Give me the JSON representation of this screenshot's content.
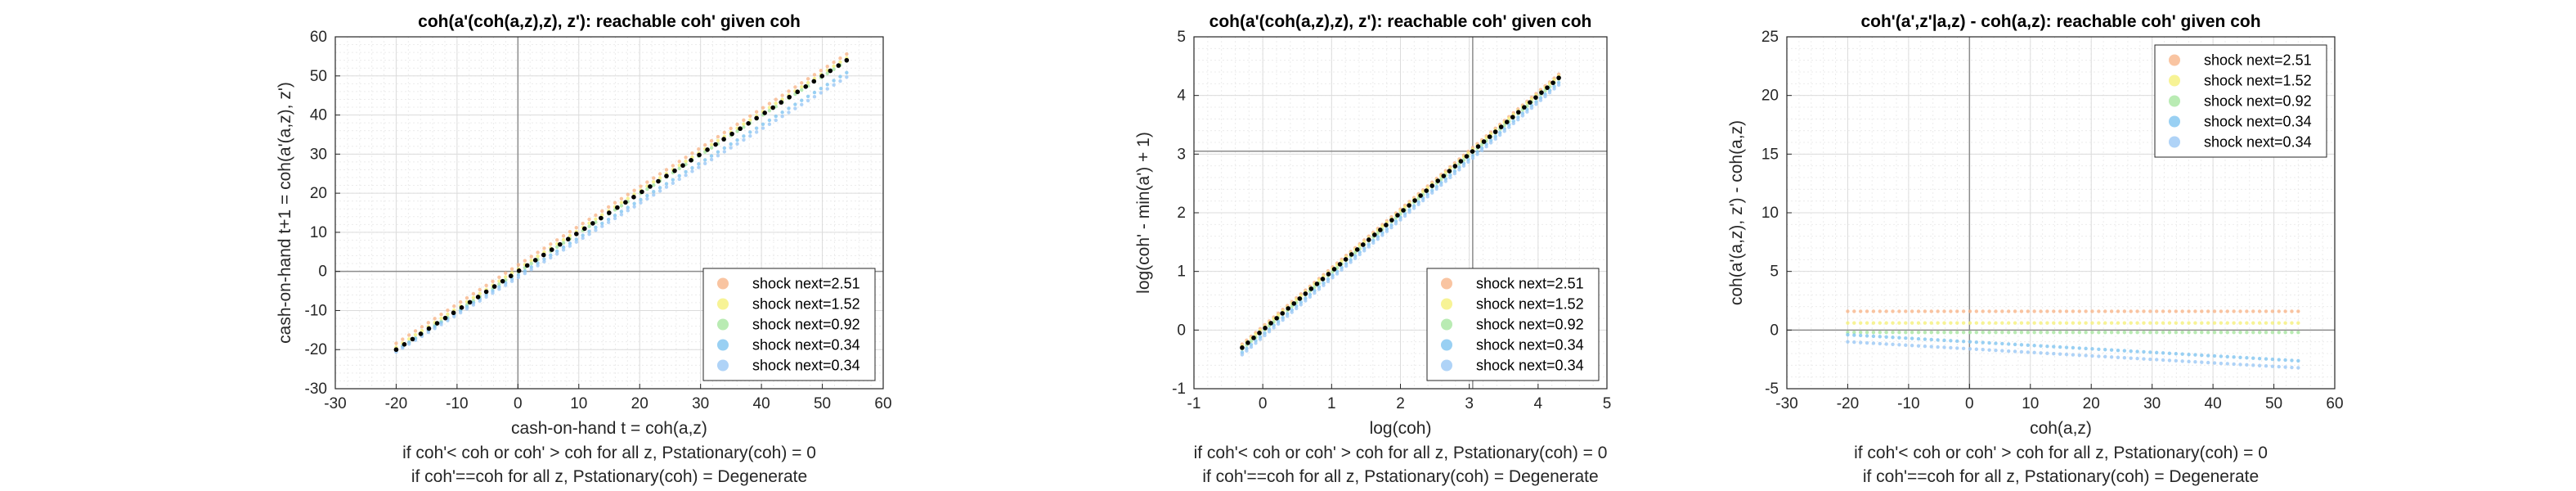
{
  "chart_data": [
    {
      "type": "scatter",
      "title": "coh(a'(coh(a,z),z), z'): reachable coh' given coh",
      "xlabel": "cash-on-hand t = coh(a,z)",
      "ylabel": "cash-on-hand t+1 = coh(a'(a,z), z')",
      "notes": [
        "if coh'< coh or coh' > coh for all z, Pstationary(coh) = 0",
        "if coh'==coh for all z, Pstationary(coh) = Degenerate"
      ],
      "xlim": [
        -30,
        60
      ],
      "ylim": [
        -30,
        60
      ],
      "xticks": [
        -30,
        -20,
        -10,
        0,
        10,
        20,
        30,
        40,
        50,
        60
      ],
      "yticks": [
        -30,
        -20,
        -10,
        0,
        10,
        20,
        30,
        40,
        50,
        60
      ],
      "refline_x": 0,
      "refline_y": 0,
      "grid": true,
      "legend_position": "bottom-right",
      "diag_line": {
        "x0": -20,
        "x1": 54,
        "offset": 0,
        "color": "#000000"
      },
      "series": [
        {
          "name": "shock next=2.51",
          "color": "#F7B58A",
          "x_range": [
            -20,
            54
          ],
          "intercept": 1.6,
          "slope": 1.0
        },
        {
          "name": "shock next=1.52",
          "color": "#F5F07A",
          "x_range": [
            -20,
            54
          ],
          "intercept": 0.6,
          "slope": 1.0
        },
        {
          "name": "shock next=0.92",
          "color": "#A8E6A0",
          "x_range": [
            -20,
            54
          ],
          "intercept": -0.2,
          "slope": 1.0
        },
        {
          "name": "shock next=0.34",
          "color": "#7FC4F0",
          "x_range": [
            -20,
            54
          ],
          "intercept": -1.0,
          "slope": 0.96
        },
        {
          "name": "shock next=0.34",
          "color": "#9BC8F5",
          "x_range": [
            -20,
            54
          ],
          "intercept": -1.6,
          "slope": 0.95
        }
      ]
    },
    {
      "type": "scatter",
      "title": "coh(a'(coh(a,z),z), z'): reachable coh' given coh",
      "xlabel": "log(coh)",
      "ylabel": "log(coh' - min(a') + 1)",
      "notes": [
        "if coh'< coh or coh' > coh for all z, Pstationary(coh) = 0",
        "if coh'==coh for all z, Pstationary(coh) = Degenerate"
      ],
      "xlim": [
        -1,
        5
      ],
      "ylim": [
        -1,
        5
      ],
      "xticks": [
        -1,
        0,
        1,
        2,
        3,
        4,
        5
      ],
      "yticks": [
        -1,
        0,
        1,
        2,
        3,
        4,
        5
      ],
      "refline_x": 3.05,
      "refline_y": 3.05,
      "grid": true,
      "legend_position": "bottom-right",
      "diag_line": {
        "x0": -0.3,
        "x1": 4.3,
        "offset": 0,
        "color": "#000000"
      },
      "series": [
        {
          "name": "shock next=2.51",
          "color": "#F7B58A",
          "x_range": [
            -0.3,
            4.3
          ],
          "intercept": 0.06,
          "slope": 1.0
        },
        {
          "name": "shock next=1.52",
          "color": "#F5F07A",
          "x_range": [
            -0.3,
            4.3
          ],
          "intercept": 0.03,
          "slope": 1.0
        },
        {
          "name": "shock next=0.92",
          "color": "#A8E6A0",
          "x_range": [
            -0.3,
            4.3
          ],
          "intercept": -0.02,
          "slope": 1.0
        },
        {
          "name": "shock next=0.34",
          "color": "#7FC4F0",
          "x_range": [
            -0.3,
            4.3
          ],
          "intercept": -0.08,
          "slope": 1.0
        },
        {
          "name": "shock next=0.34",
          "color": "#9BC8F5",
          "x_range": [
            -0.3,
            4.3
          ],
          "intercept": -0.12,
          "slope": 1.0
        }
      ]
    },
    {
      "type": "scatter",
      "title": "coh'(a',z'|a,z) - coh(a,z): reachable coh' given coh",
      "xlabel": "coh(a,z)",
      "ylabel": "coh(a'(a,z), z') - coh(a,z)",
      "notes": [
        "if coh'< coh or coh' > coh for all z, Pstationary(coh) = 0",
        "if coh'==coh for all z, Pstationary(coh) = Degenerate"
      ],
      "xlim": [
        -30,
        60
      ],
      "ylim": [
        -5,
        25
      ],
      "xticks": [
        -30,
        -20,
        -10,
        0,
        10,
        20,
        30,
        40,
        50,
        60
      ],
      "yticks": [
        -5,
        0,
        5,
        10,
        15,
        20,
        25
      ],
      "refline_x": 0,
      "refline_y": 0,
      "grid": true,
      "legend_position": "top-right",
      "series": [
        {
          "name": "shock next=2.51",
          "color": "#F7B58A",
          "x_range": [
            -20,
            54
          ],
          "intercept": 1.6,
          "slope": 0.0
        },
        {
          "name": "shock next=1.52",
          "color": "#F5F07A",
          "x_range": [
            -20,
            54
          ],
          "intercept": 0.6,
          "slope": 0.0
        },
        {
          "name": "shock next=0.92",
          "color": "#A8E6A0",
          "x_range": [
            -20,
            54
          ],
          "intercept": -0.2,
          "slope": 0.0
        },
        {
          "name": "shock next=0.34",
          "color": "#7FC4F0",
          "x_range": [
            -20,
            54
          ],
          "intercept": -1.0,
          "slope": -0.03
        },
        {
          "name": "shock next=0.34",
          "color": "#9BC8F5",
          "x_range": [
            -20,
            54
          ],
          "intercept": -1.6,
          "slope": -0.03
        }
      ]
    }
  ]
}
